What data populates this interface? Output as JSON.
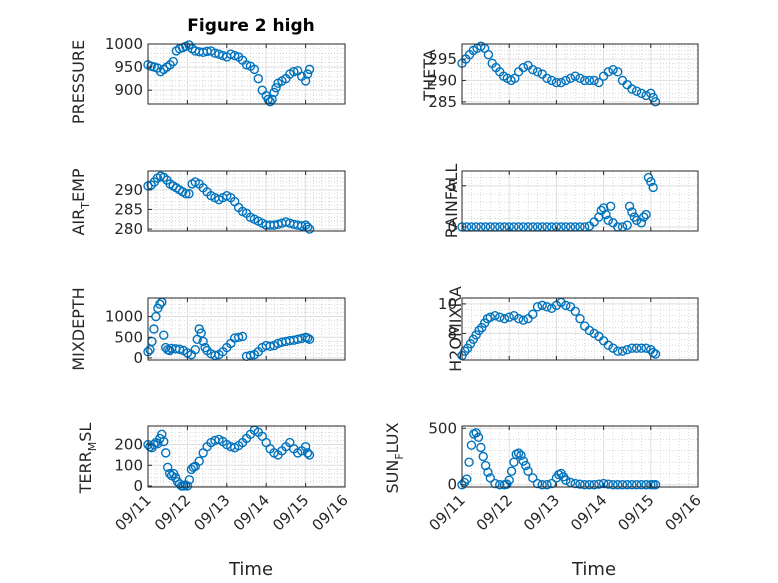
{
  "figure": {
    "title": "Figure 2 high"
  },
  "chart_data": [
    {
      "type": "scatter",
      "panel": "pressure",
      "ylabel": "PRESSURE",
      "title": "Figure 2 high",
      "xlim": [
        "09/11",
        "09/16"
      ],
      "ylim": [
        870,
        1000
      ],
      "yticks": [
        900,
        950,
        1000
      ],
      "x_ticks": [
        "09/11",
        "09/12",
        "09/13",
        "09/14",
        "09/15",
        "09/16"
      ],
      "show_xtick_labels": false,
      "grid": "major+minor",
      "x": [
        0,
        0.08,
        0.16,
        0.24,
        0.32,
        0.4,
        0.48,
        0.56,
        0.64,
        0.72,
        0.8,
        0.88,
        0.96,
        1.04,
        1.12,
        1.2,
        1.3,
        1.4,
        1.5,
        1.6,
        1.7,
        1.8,
        1.9,
        2.0,
        2.1,
        2.2,
        2.3,
        2.4,
        2.5,
        2.6,
        2.7,
        2.8,
        2.9,
        3.0,
        3.05,
        3.1,
        3.15,
        3.2,
        3.25,
        3.3,
        3.4,
        3.5,
        3.6,
        3.7,
        3.8,
        3.9,
        4.0,
        4.05,
        4.1
      ],
      "y": [
        955,
        952,
        950,
        948,
        940,
        945,
        950,
        955,
        962,
        985,
        990,
        992,
        995,
        998,
        990,
        985,
        983,
        982,
        984,
        985,
        980,
        978,
        975,
        972,
        978,
        975,
        972,
        965,
        955,
        952,
        945,
        925,
        900,
        888,
        880,
        875,
        880,
        895,
        905,
        915,
        920,
        925,
        935,
        940,
        942,
        930,
        920,
        935,
        945
      ]
    },
    {
      "type": "scatter",
      "panel": "theta",
      "ylabel": "THETA",
      "xlim": [
        "09/11",
        "09/16"
      ],
      "ylim": [
        284.5,
        298.5
      ],
      "yticks": [
        285,
        290,
        295
      ],
      "x_ticks": [
        "09/11",
        "09/12",
        "09/13",
        "09/14",
        "09/15",
        "09/16"
      ],
      "show_xtick_labels": false,
      "grid": "major+minor",
      "x": [
        0,
        0.08,
        0.16,
        0.24,
        0.32,
        0.4,
        0.48,
        0.56,
        0.64,
        0.72,
        0.8,
        0.88,
        0.96,
        1.04,
        1.12,
        1.2,
        1.3,
        1.4,
        1.5,
        1.6,
        1.7,
        1.8,
        1.9,
        2.0,
        2.1,
        2.2,
        2.3,
        2.4,
        2.5,
        2.6,
        2.7,
        2.8,
        2.9,
        3.0,
        3.1,
        3.2,
        3.3,
        3.4,
        3.5,
        3.6,
        3.7,
        3.8,
        3.9,
        4.0,
        4.05,
        4.1
      ],
      "y": [
        294,
        295,
        296,
        297,
        297.5,
        298,
        297.5,
        296,
        294,
        293,
        292,
        291,
        290.5,
        290,
        290.5,
        292,
        293,
        293.5,
        292.5,
        292,
        291.5,
        290.5,
        290,
        289.5,
        289.5,
        290,
        290.5,
        291,
        290.5,
        290,
        290,
        290,
        289.5,
        291,
        292,
        292.5,
        292,
        290,
        289,
        288,
        287.5,
        287,
        286.5,
        287,
        286,
        285
      ]
    },
    {
      "type": "scatter",
      "panel": "air_temp",
      "ylabel": "AIR_TEMP",
      "xlim": [
        "09/11",
        "09/16"
      ],
      "ylim": [
        279.5,
        294.8
      ],
      "yticks": [
        280,
        285,
        290
      ],
      "x_ticks": [
        "09/11",
        "09/12",
        "09/13",
        "09/14",
        "09/15",
        "09/16"
      ],
      "show_xtick_labels": false,
      "grid": "major+minor",
      "x": [
        0,
        0.08,
        0.16,
        0.24,
        0.32,
        0.4,
        0.48,
        0.56,
        0.64,
        0.72,
        0.8,
        0.88,
        0.96,
        1.04,
        1.12,
        1.2,
        1.3,
        1.4,
        1.5,
        1.6,
        1.7,
        1.8,
        1.9,
        2.0,
        2.1,
        2.2,
        2.3,
        2.4,
        2.5,
        2.6,
        2.7,
        2.8,
        2.9,
        3.0,
        3.1,
        3.2,
        3.3,
        3.4,
        3.5,
        3.6,
        3.7,
        3.8,
        3.9,
        4.0,
        4.05,
        4.1
      ],
      "y": [
        291,
        291.2,
        292,
        293,
        293.5,
        293.2,
        292.5,
        291.5,
        291,
        290.5,
        290,
        289.5,
        289,
        289,
        291.5,
        292,
        291.5,
        290.5,
        289.5,
        288.5,
        288,
        287.5,
        288,
        288.5,
        288,
        287,
        285.5,
        284.5,
        284,
        283,
        282.5,
        282,
        281.5,
        281,
        281,
        281,
        281.2,
        281.5,
        281.8,
        281.5,
        281.2,
        281,
        280.8,
        281,
        280.5,
        280
      ]
    },
    {
      "type": "scatter",
      "panel": "rainfall",
      "ylabel": "RAINFALL",
      "xlim": [
        "09/11",
        "09/16"
      ],
      "ylim": [
        -0.5,
        6.8
      ],
      "yticks": [
        0,
        5
      ],
      "x_ticks": [
        "09/11",
        "09/12",
        "09/13",
        "09/14",
        "09/15",
        "09/16"
      ],
      "show_xtick_labels": false,
      "grid": "major+minor",
      "x": [
        0,
        0.1,
        0.2,
        0.3,
        0.4,
        0.5,
        0.6,
        0.7,
        0.8,
        0.9,
        1.0,
        1.1,
        1.2,
        1.3,
        1.4,
        1.5,
        1.6,
        1.7,
        1.8,
        1.9,
        2.0,
        2.1,
        2.2,
        2.3,
        2.4,
        2.5,
        2.6,
        2.7,
        2.8,
        2.9,
        2.95,
        3.0,
        3.05,
        3.1,
        3.15,
        3.2,
        3.3,
        3.4,
        3.5,
        3.55,
        3.6,
        3.65,
        3.7,
        3.8,
        3.85,
        3.9,
        3.95,
        4.0,
        4.05
      ],
      "y": [
        0,
        0,
        0,
        0,
        0,
        0,
        0,
        0,
        0,
        0,
        0,
        0,
        0,
        0,
        0,
        0,
        0,
        0,
        0,
        0,
        0,
        0,
        0,
        0,
        0,
        0,
        0,
        0.1,
        0.6,
        1.2,
        2.0,
        2.3,
        1.5,
        0.8,
        2.5,
        0.5,
        0,
        0,
        0.2,
        2.5,
        1.8,
        1.2,
        0.8,
        0.5,
        1.2,
        1.5,
        6.0,
        5.5,
        4.8
      ]
    },
    {
      "type": "scatter",
      "panel": "mixdepth",
      "ylabel": "MIXDEPTH",
      "xlim": [
        "09/11",
        "09/16"
      ],
      "ylim": [
        -50,
        1450
      ],
      "yticks": [
        0,
        500,
        1000
      ],
      "x_ticks": [
        "09/11",
        "09/12",
        "09/13",
        "09/14",
        "09/15",
        "09/16"
      ],
      "show_xtick_labels": false,
      "grid": "major+minor",
      "x": [
        0,
        0.05,
        0.1,
        0.15,
        0.2,
        0.25,
        0.3,
        0.35,
        0.4,
        0.45,
        0.5,
        0.55,
        0.6,
        0.7,
        0.8,
        0.9,
        1.0,
        1.1,
        1.2,
        1.25,
        1.3,
        1.35,
        1.4,
        1.45,
        1.5,
        1.6,
        1.7,
        1.8,
        1.9,
        2.0,
        2.1,
        2.2,
        2.3,
        2.4,
        2.5,
        2.6,
        2.7,
        2.8,
        2.9,
        3.0,
        3.1,
        3.2,
        3.3,
        3.4,
        3.5,
        3.6,
        3.7,
        3.8,
        3.9,
        4.0,
        4.05,
        4.1
      ],
      "y": [
        150,
        200,
        400,
        700,
        1000,
        1200,
        1300,
        1350,
        550,
        250,
        200,
        180,
        230,
        220,
        210,
        180,
        120,
        80,
        200,
        450,
        700,
        600,
        400,
        250,
        180,
        100,
        60,
        80,
        150,
        250,
        350,
        480,
        500,
        520,
        40,
        60,
        80,
        150,
        250,
        300,
        280,
        300,
        350,
        380,
        400,
        420,
        430,
        450,
        470,
        500,
        480,
        450
      ]
    },
    {
      "type": "scatter",
      "panel": "h2omixra",
      "ylabel": "H2OMIXRA",
      "xlim": [
        "09/11",
        "09/16"
      ],
      "ylim": [
        6.2,
        10.4
      ],
      "yticks": [
        8,
        10
      ],
      "x_ticks": [
        "09/11",
        "09/12",
        "09/13",
        "09/14",
        "09/15",
        "09/16"
      ],
      "show_xtick_labels": false,
      "grid": "major+minor",
      "x": [
        0,
        0.06,
        0.12,
        0.18,
        0.24,
        0.3,
        0.36,
        0.42,
        0.48,
        0.54,
        0.6,
        0.7,
        0.8,
        0.9,
        1.0,
        1.1,
        1.2,
        1.3,
        1.4,
        1.5,
        1.6,
        1.7,
        1.8,
        1.9,
        2.0,
        2.1,
        2.2,
        2.3,
        2.4,
        2.5,
        2.6,
        2.7,
        2.8,
        2.9,
        3.0,
        3.1,
        3.2,
        3.3,
        3.4,
        3.5,
        3.6,
        3.7,
        3.8,
        3.9,
        4.0,
        4.05,
        4.1
      ],
      "y": [
        6.5,
        6.8,
        7.0,
        7.3,
        7.6,
        7.9,
        8.2,
        8.4,
        8.7,
        9.0,
        9.1,
        9.2,
        9.1,
        9.0,
        9.1,
        9.2,
        9.0,
        8.9,
        9.0,
        9.3,
        9.8,
        9.9,
        9.8,
        9.7,
        9.9,
        10.1,
        9.9,
        9.8,
        9.5,
        9.0,
        8.5,
        8.2,
        8.0,
        7.8,
        7.5,
        7.2,
        7.0,
        6.8,
        6.8,
        6.9,
        7.0,
        7.0,
        7.0,
        7.0,
        6.9,
        6.7,
        6.6
      ]
    },
    {
      "type": "scatter",
      "panel": "terr_msl",
      "ylabel": "TERR_MSL",
      "xlim": [
        "09/11",
        "09/16"
      ],
      "ylim": [
        -5,
        290
      ],
      "yticks": [
        0,
        100,
        200
      ],
      "x_ticks": [
        "09/11",
        "09/12",
        "09/13",
        "09/14",
        "09/15",
        "09/16"
      ],
      "show_xtick_labels": true,
      "xlabel": "Time",
      "grid": "major+minor",
      "x": [
        0,
        0.05,
        0.1,
        0.15,
        0.2,
        0.25,
        0.3,
        0.35,
        0.4,
        0.45,
        0.5,
        0.55,
        0.6,
        0.65,
        0.7,
        0.75,
        0.8,
        0.85,
        0.9,
        0.95,
        1.0,
        1.05,
        1.1,
        1.15,
        1.2,
        1.3,
        1.4,
        1.5,
        1.6,
        1.7,
        1.8,
        1.9,
        2.0,
        2.1,
        2.2,
        2.3,
        2.4,
        2.5,
        2.6,
        2.7,
        2.8,
        2.9,
        3.0,
        3.1,
        3.2,
        3.3,
        3.4,
        3.5,
        3.6,
        3.7,
        3.8,
        3.9,
        4.0,
        4.05,
        4.1
      ],
      "y": [
        200,
        190,
        185,
        200,
        210,
        205,
        230,
        250,
        215,
        160,
        90,
        60,
        50,
        60,
        40,
        20,
        10,
        0,
        0,
        5,
        0,
        30,
        80,
        90,
        95,
        120,
        160,
        190,
        210,
        220,
        225,
        215,
        200,
        190,
        185,
        195,
        210,
        230,
        250,
        270,
        260,
        240,
        210,
        180,
        160,
        150,
        170,
        190,
        210,
        180,
        160,
        170,
        190,
        160,
        150
      ]
    },
    {
      "type": "scatter",
      "panel": "sun_flux",
      "ylabel": "SUN_FLUX",
      "xlim": [
        "09/11",
        "09/16"
      ],
      "ylim": [
        -20,
        520
      ],
      "yticks": [
        0,
        500
      ],
      "x_ticks": [
        "09/11",
        "09/12",
        "09/13",
        "09/14",
        "09/15",
        "09/16"
      ],
      "show_xtick_labels": true,
      "xlabel": "Time",
      "grid": "major+minor",
      "x": [
        0,
        0.05,
        0.1,
        0.15,
        0.2,
        0.25,
        0.3,
        0.35,
        0.4,
        0.45,
        0.5,
        0.55,
        0.6,
        0.7,
        0.8,
        0.9,
        0.95,
        1.0,
        1.05,
        1.1,
        1.15,
        1.2,
        1.25,
        1.3,
        1.35,
        1.4,
        1.5,
        1.6,
        1.7,
        1.8,
        1.9,
        2.0,
        2.05,
        2.1,
        2.15,
        2.2,
        2.3,
        2.4,
        2.5,
        2.6,
        2.7,
        2.8,
        2.9,
        3.0,
        3.1,
        3.2,
        3.3,
        3.4,
        3.5,
        3.6,
        3.7,
        3.8,
        3.9,
        4.0,
        4.05,
        4.1
      ],
      "y": [
        0,
        20,
        50,
        200,
        350,
        450,
        460,
        420,
        330,
        250,
        170,
        110,
        60,
        10,
        0,
        0,
        5,
        40,
        120,
        200,
        270,
        280,
        260,
        210,
        170,
        120,
        60,
        10,
        0,
        0,
        10,
        60,
        90,
        100,
        70,
        40,
        20,
        10,
        5,
        0,
        0,
        0,
        5,
        10,
        5,
        0,
        0,
        0,
        0,
        0,
        0,
        0,
        0,
        0,
        0,
        0
      ]
    }
  ],
  "labels": {
    "pressure": "PRESSURE",
    "theta": "THETA",
    "air_temp": {
      "base": "AIR",
      "sub": "T",
      "rest": "EMP"
    },
    "rainfall": "RAINFALL",
    "mixdepth": "MIXDEPTH",
    "h2omixra": "H2OMIXRA",
    "terr_msl": {
      "base": "TERR",
      "sub": "M",
      "rest": "SL"
    },
    "sun_flux": {
      "base": "SUN",
      "sub": "F",
      "rest": "LUX"
    },
    "xlabel": "Time",
    "x_ticks": [
      "09/11",
      "09/12",
      "09/13",
      "09/14",
      "09/15",
      "09/16"
    ]
  },
  "colors": {
    "marker": "#0072BD",
    "axis": "#262626",
    "grid": "#DFDFDF",
    "minor_grid": "#BEBEBE"
  }
}
